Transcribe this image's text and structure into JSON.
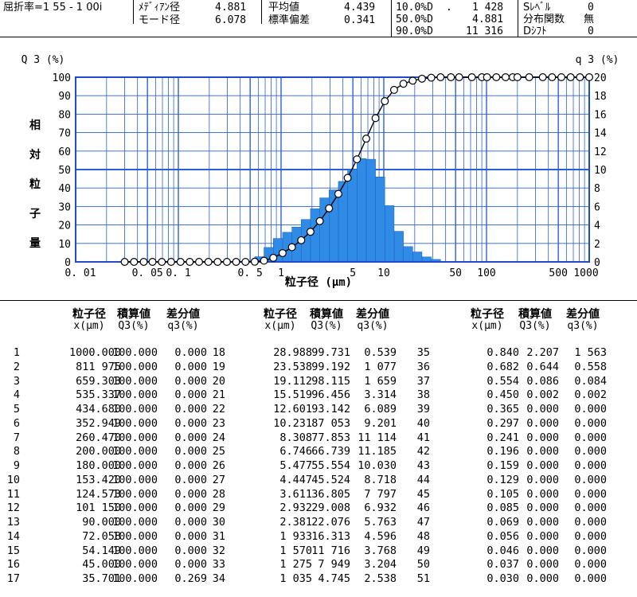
{
  "header": {
    "refractive_label": "屈折率=1 55 - 1 00i",
    "median_label": "ﾒﾃﾞｨｱﾝ径",
    "median_value": "4.881",
    "mode_label": "モード径",
    "mode_value": "6.078",
    "mean_label": "平均値",
    "mean_value": "4.439",
    "stddev_label": "標準偏差",
    "stddev_value": "0.341",
    "d10_label": "10.0%D",
    "d10_dot": ".",
    "d10_value": "1 428",
    "d50_label": "50.0%D",
    "d50_value": "4.881",
    "d90_label": "90.0%D",
    "d90_value": "11 316",
    "slevel_label": "Sﾚﾍﾞﾙ",
    "slevel_value": "0",
    "dist_label": "分布関数",
    "dist_value": "無",
    "dshift_label": "Dｼﾌﾄ",
    "dshift_value": "0"
  },
  "chart_data": {
    "type": "bar",
    "left_axis_title": "Q 3 (%)",
    "right_axis_title": "q 3 (%)",
    "ylabel_chars": [
      "相",
      "対",
      "粒",
      "子",
      "量"
    ],
    "xlabel": "粒子径 (μm)",
    "x_scale": "log",
    "xlim": [
      0.01,
      1000
    ],
    "ylim_left": [
      0,
      100
    ],
    "ylim_right": [
      0,
      20
    ],
    "x_tick_labels": [
      {
        "value": 0.01,
        "label": "0. 01"
      },
      {
        "value": 0.05,
        "label": "0. 05"
      },
      {
        "value": 0.1,
        "label": "0. 1"
      },
      {
        "value": 0.5,
        "label": "0. 5"
      },
      {
        "value": 1,
        "label": "1"
      },
      {
        "value": 5,
        "label": "5"
      },
      {
        "value": 10,
        "label": "10"
      },
      {
        "value": 50,
        "label": "50"
      },
      {
        "value": 100,
        "label": "100"
      },
      {
        "value": 500,
        "label": "500"
      },
      {
        "value": 1000,
        "label": "1000"
      }
    ],
    "left_ticks": [
      "0",
      "10",
      "20",
      "30",
      "40",
      "50",
      "60",
      "70",
      "80",
      "90",
      "100"
    ],
    "right_ticks": [
      "0",
      "2",
      "4",
      "6",
      "8",
      "10",
      "12",
      "14",
      "16",
      "18",
      "20"
    ],
    "grid": true,
    "bar_color": "#2f8be6",
    "grid_color": "#2b5fd9",
    "x": [
      1000.0,
      811.975,
      659.303,
      535.337,
      434.68,
      352.949,
      260.47,
      200.0,
      180.0,
      153.42,
      124.573,
      101.15,
      90.0,
      72.058,
      54.149,
      45.0,
      35.701,
      28.988,
      23.538,
      19.112,
      15.519,
      12.601,
      10.231,
      8.308,
      6.746,
      5.477,
      4.447,
      3.611,
      2.932,
      2.381,
      1.933,
      1.57,
      1.275,
      1.035,
      0.84,
      0.682,
      0.554,
      0.45,
      0.365,
      0.297,
      0.241,
      0.196,
      0.159,
      0.129,
      0.105,
      0.085,
      0.069,
      0.056,
      0.046,
      0.037,
      0.03
    ],
    "Q3": [
      100.0,
      100.0,
      100.0,
      100.0,
      100.0,
      100.0,
      100.0,
      100.0,
      100.0,
      100.0,
      100.0,
      100.0,
      100.0,
      100.0,
      100.0,
      100.0,
      100.0,
      99.731,
      99.192,
      98.115,
      96.456,
      93.142,
      87.053,
      77.853,
      66.739,
      55.554,
      45.524,
      36.805,
      29.008,
      22.076,
      16.313,
      11.716,
      7.949,
      4.745,
      2.207,
      0.644,
      0.086,
      0.002,
      0.0,
      0.0,
      0.0,
      0.0,
      0.0,
      0.0,
      0.0,
      0.0,
      0.0,
      0.0,
      0.0,
      0.0,
      0.0
    ],
    "q3": [
      0.0,
      0.0,
      0.0,
      0.0,
      0.0,
      0.0,
      0.0,
      0.0,
      0.0,
      0.0,
      0.0,
      0.0,
      0.0,
      0.0,
      0.0,
      0.0,
      0.269,
      0.539,
      1.077,
      1.659,
      3.314,
      6.089,
      9.201,
      11.114,
      11.185,
      10.03,
      8.718,
      7.797,
      6.932,
      5.763,
      4.596,
      3.768,
      3.204,
      2.538,
      1.563,
      0.558,
      0.084,
      0.002,
      0.0,
      0.0,
      0.0,
      0.0,
      0.0,
      0.0,
      0.0,
      0.0,
      0.0,
      0.0,
      0.0,
      0.0,
      0.0
    ]
  },
  "table": {
    "col_headers": [
      "粒子径",
      "積算値",
      "差分値"
    ],
    "col_subheaders": [
      "x(μm)",
      "Q3(%)",
      "q3(%)"
    ],
    "rows": [
      [
        "1",
        "1000.000",
        "100.000",
        "0.000"
      ],
      [
        "2",
        "811 975",
        "100.000",
        "0.000"
      ],
      [
        "3",
        "659.303",
        "100.000",
        "0.000"
      ],
      [
        "4",
        "535.337",
        "100.000",
        "0.000"
      ],
      [
        "5",
        "434.680",
        "100.000",
        "0.000"
      ],
      [
        "6",
        "352.949",
        "100.000",
        "0.000"
      ],
      [
        "7",
        "260.470",
        "100.000",
        "0.000"
      ],
      [
        "8",
        "200.000",
        "100.000",
        "0.000"
      ],
      [
        "9",
        "180.000",
        "100.000",
        "0.000"
      ],
      [
        "10",
        "153.420",
        "100.000",
        "0.000"
      ],
      [
        "11",
        "124.573",
        "100.000",
        "0.000"
      ],
      [
        "12",
        "101 150",
        "100.000",
        "0.000"
      ],
      [
        "13",
        "90.000",
        "100.000",
        "0.000"
      ],
      [
        "14",
        "72.058",
        "100.000",
        "0.000"
      ],
      [
        "15",
        "54.149",
        "100.000",
        "0.000"
      ],
      [
        "16",
        "45.000",
        "100.000",
        "0.000"
      ],
      [
        "17",
        "35.701",
        "100.000",
        "0.269"
      ],
      [
        "18",
        "28.988",
        "99.731",
        "0.539"
      ],
      [
        "19",
        "23.538",
        "99.192",
        "1 077"
      ],
      [
        "20",
        "19.112",
        "98.115",
        "1 659"
      ],
      [
        "21",
        "15.519",
        "96.456",
        "3.314"
      ],
      [
        "22",
        "12.601",
        "93.142",
        "6.089"
      ],
      [
        "23",
        "10.231",
        "87 053",
        "9.201"
      ],
      [
        "24",
        "8.308",
        "77.853",
        "11 114"
      ],
      [
        "25",
        "6.746",
        "66.739",
        "11.185"
      ],
      [
        "26",
        "5.477",
        "55.554",
        "10.030"
      ],
      [
        "27",
        "4.447",
        "45.524",
        "8.718"
      ],
      [
        "28",
        "3.611",
        "36.805",
        "7 797"
      ],
      [
        "29",
        "2.932",
        "29.008",
        "6.932"
      ],
      [
        "30",
        "2.381",
        "22.076",
        "5.763"
      ],
      [
        "31",
        "1 933",
        "16.313",
        "4.596"
      ],
      [
        "32",
        "1 570",
        "11 716",
        "3.768"
      ],
      [
        "33",
        "1 275",
        "7 949",
        "3.204"
      ],
      [
        "34",
        "1 035",
        "4.745",
        "2.538"
      ],
      [
        "35",
        "0.840",
        "2.207",
        "1 563"
      ],
      [
        "36",
        "0.682",
        "0.644",
        "0.558"
      ],
      [
        "37",
        "0.554",
        "0.086",
        "0.084"
      ],
      [
        "38",
        "0.450",
        "0.002",
        "0.002"
      ],
      [
        "39",
        "0.365",
        "0.000",
        "0.000"
      ],
      [
        "40",
        "0.297",
        "0.000",
        "0.000"
      ],
      [
        "41",
        "0.241",
        "0.000",
        "0.000"
      ],
      [
        "42",
        "0.196",
        "0.000",
        "0.000"
      ],
      [
        "43",
        "0.159",
        "0.000",
        "0.000"
      ],
      [
        "44",
        "0.129",
        "0.000",
        "0.000"
      ],
      [
        "45",
        "0.105",
        "0.000",
        "0.000"
      ],
      [
        "46",
        "0.085",
        "0.000",
        "0.000"
      ],
      [
        "47",
        "0.069",
        "0.000",
        "0.000"
      ],
      [
        "48",
        "0.056",
        "0.000",
        "0.000"
      ],
      [
        "49",
        "0.046",
        "0.000",
        "0.000"
      ],
      [
        "50",
        "0.037",
        "0.000",
        "0.000"
      ],
      [
        "51",
        "0.030",
        "0.000",
        "0.000"
      ]
    ]
  }
}
